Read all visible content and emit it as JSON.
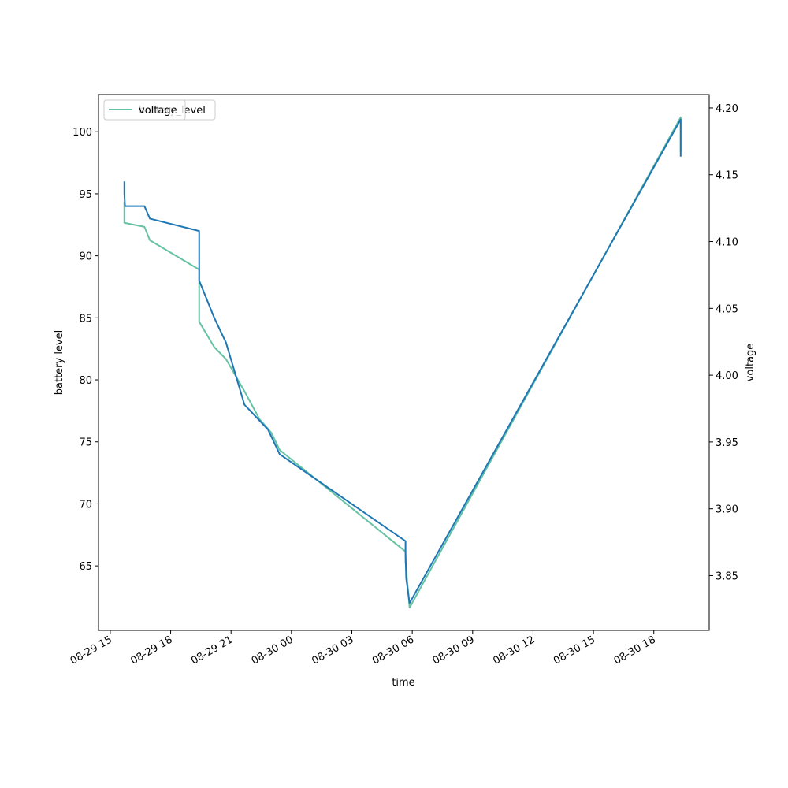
{
  "chart_data": {
    "type": "line",
    "xlabel": "time",
    "ylabel_left": "battery level",
    "ylabel_right": "voltage",
    "x_ticks": [
      {
        "t": "2023-08-29T15:00",
        "label": "08-29 15"
      },
      {
        "t": "2023-08-29T18:00",
        "label": "08-29 18"
      },
      {
        "t": "2023-08-29T21:00",
        "label": "08-29 21"
      },
      {
        "t": "2023-08-30T00:00",
        "label": "08-30 00"
      },
      {
        "t": "2023-08-30T03:00",
        "label": "08-30 03"
      },
      {
        "t": "2023-08-30T06:00",
        "label": "08-30 06"
      },
      {
        "t": "2023-08-30T09:00",
        "label": "08-30 09"
      },
      {
        "t": "2023-08-30T12:00",
        "label": "08-30 12"
      },
      {
        "t": "2023-08-30T15:00",
        "label": "08-30 15"
      },
      {
        "t": "2023-08-30T18:00",
        "label": "08-30 18"
      }
    ],
    "xlim": [
      "2023-08-29T14:25",
      "2023-08-30T20:45"
    ],
    "ylim_left": [
      59.8,
      103.0
    ],
    "ylim_right": [
      3.809,
      4.21
    ],
    "y_ticks_left": [
      65,
      70,
      75,
      80,
      85,
      90,
      95,
      100
    ],
    "y_ticks_right": [
      3.85,
      3.9,
      3.95,
      4.0,
      4.05,
      4.1,
      4.15,
      4.2
    ],
    "series": [
      {
        "name": "battery_level",
        "axis": "left",
        "color": "#1f77b4",
        "points": [
          [
            "2023-08-29T15:42",
            96
          ],
          [
            "2023-08-29T15:42",
            95
          ],
          [
            "2023-08-29T15:44",
            94
          ],
          [
            "2023-08-29T16:42",
            94
          ],
          [
            "2023-08-29T16:58",
            93
          ],
          [
            "2023-08-29T19:25",
            92
          ],
          [
            "2023-08-29T19:25",
            88
          ],
          [
            "2023-08-29T20:10",
            85
          ],
          [
            "2023-08-29T20:45",
            83
          ],
          [
            "2023-08-29T21:40",
            78
          ],
          [
            "2023-08-29T22:50",
            76
          ],
          [
            "2023-08-29T23:25",
            74
          ],
          [
            "2023-08-30T05:40",
            67
          ],
          [
            "2023-08-30T05:40",
            66
          ],
          [
            "2023-08-30T05:41",
            65
          ],
          [
            "2023-08-30T05:42",
            64
          ],
          [
            "2023-08-30T05:52",
            62
          ],
          [
            "2023-08-30T19:20",
            101
          ],
          [
            "2023-08-30T19:20",
            98
          ]
        ]
      },
      {
        "name": "voltage",
        "axis": "right",
        "color": "#66c2a5",
        "points": [
          [
            "2023-08-29T15:42",
            4.13
          ],
          [
            "2023-08-29T15:42",
            4.114
          ],
          [
            "2023-08-29T16:42",
            4.111
          ],
          [
            "2023-08-29T16:58",
            4.101
          ],
          [
            "2023-08-29T19:25",
            4.079
          ],
          [
            "2023-08-29T19:25",
            4.04
          ],
          [
            "2023-08-29T20:10",
            4.021
          ],
          [
            "2023-08-29T20:45",
            4.012
          ],
          [
            "2023-08-29T21:40",
            3.988
          ],
          [
            "2023-08-29T22:25",
            3.967
          ],
          [
            "2023-08-29T23:00",
            3.957
          ],
          [
            "2023-08-29T23:25",
            3.944
          ],
          [
            "2023-08-30T05:40",
            3.868
          ],
          [
            "2023-08-30T05:40",
            3.86
          ],
          [
            "2023-08-30T05:52",
            3.826
          ],
          [
            "2023-08-30T19:20",
            4.193
          ],
          [
            "2023-08-30T19:20",
            4.167
          ]
        ]
      }
    ],
    "legend": {
      "placement": "upper-left",
      "entries": [
        {
          "label": "battery_level",
          "color": "#1f77b4"
        },
        {
          "label": "voltage",
          "color": "#66c2a5"
        }
      ]
    }
  }
}
